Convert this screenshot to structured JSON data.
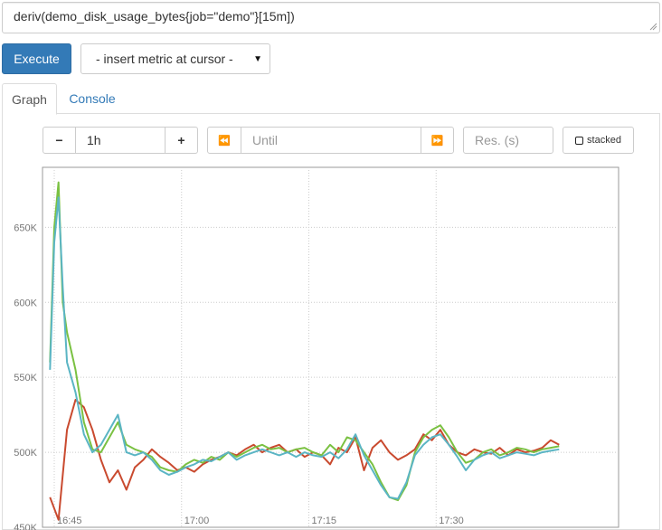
{
  "expression": {
    "value": "deriv(demo_disk_usage_bytes{job=\"demo\"}[15m])"
  },
  "toolbar": {
    "execute_label": "Execute",
    "metric_select_label": "- insert metric at cursor -"
  },
  "tabs": [
    {
      "label": "Graph",
      "active": true
    },
    {
      "label": "Console",
      "active": false
    }
  ],
  "controls": {
    "range_minus": "−",
    "range_value": "1h",
    "range_plus": "+",
    "back_icon": "⏪",
    "until_placeholder": "Until",
    "forward_icon": "⏩",
    "resolution_placeholder": "Res. (s)",
    "stacked_label": "stacked"
  },
  "chart_data": {
    "type": "line",
    "x_ticks": [
      "16:45",
      "17:00",
      "17:15",
      "17:30"
    ],
    "y_ticks": [
      "450K",
      "500K",
      "550K",
      "600K",
      "650K"
    ],
    "xlim": [
      0,
      60
    ],
    "ylim": [
      450000,
      690000
    ],
    "grid": true,
    "series": [
      {
        "color": "#c94a2f",
        "points": [
          [
            0,
            470000
          ],
          [
            1,
            455000
          ],
          [
            2,
            515000
          ],
          [
            3,
            535000
          ],
          [
            4,
            530000
          ],
          [
            5,
            515000
          ],
          [
            6,
            495000
          ],
          [
            7,
            480000
          ],
          [
            8,
            488000
          ],
          [
            9,
            475000
          ],
          [
            10,
            490000
          ],
          [
            11,
            495000
          ],
          [
            12,
            502000
          ],
          [
            13,
            497000
          ],
          [
            14,
            493000
          ],
          [
            15,
            488000
          ],
          [
            16,
            490000
          ],
          [
            17,
            487000
          ],
          [
            18,
            492000
          ],
          [
            19,
            495000
          ],
          [
            20,
            497000
          ],
          [
            21,
            500000
          ],
          [
            22,
            498000
          ],
          [
            23,
            502000
          ],
          [
            24,
            505000
          ],
          [
            25,
            500000
          ],
          [
            26,
            503000
          ],
          [
            27,
            505000
          ],
          [
            28,
            500000
          ],
          [
            29,
            502000
          ],
          [
            30,
            497000
          ],
          [
            31,
            500000
          ],
          [
            32,
            498000
          ],
          [
            33,
            492000
          ],
          [
            34,
            503000
          ],
          [
            35,
            500000
          ],
          [
            36,
            510000
          ],
          [
            37,
            488000
          ],
          [
            38,
            503000
          ],
          [
            39,
            508000
          ],
          [
            40,
            500000
          ],
          [
            41,
            495000
          ],
          [
            42,
            498000
          ],
          [
            43,
            502000
          ],
          [
            44,
            512000
          ],
          [
            45,
            508000
          ],
          [
            46,
            515000
          ],
          [
            47,
            505000
          ],
          [
            48,
            500000
          ],
          [
            49,
            498000
          ],
          [
            50,
            502000
          ],
          [
            51,
            500000
          ],
          [
            52,
            499000
          ],
          [
            53,
            503000
          ],
          [
            54,
            498000
          ],
          [
            55,
            502000
          ],
          [
            56,
            500000
          ],
          [
            57,
            501000
          ],
          [
            58,
            503000
          ],
          [
            59,
            508000
          ],
          [
            60,
            505000
          ]
        ]
      },
      {
        "color": "#7ac142",
        "points": [
          [
            0,
            560000
          ],
          [
            0.5,
            650000
          ],
          [
            1,
            680000
          ],
          [
            1.5,
            600000
          ],
          [
            2,
            580000
          ],
          [
            3,
            555000
          ],
          [
            4,
            520000
          ],
          [
            5,
            502000
          ],
          [
            6,
            500000
          ],
          [
            7,
            510000
          ],
          [
            8,
            520000
          ],
          [
            9,
            505000
          ],
          [
            10,
            502000
          ],
          [
            11,
            500000
          ],
          [
            12,
            497000
          ],
          [
            13,
            490000
          ],
          [
            14,
            488000
          ],
          [
            15,
            487000
          ],
          [
            16,
            492000
          ],
          [
            17,
            495000
          ],
          [
            18,
            493000
          ],
          [
            19,
            497000
          ],
          [
            20,
            495000
          ],
          [
            21,
            500000
          ],
          [
            22,
            497000
          ],
          [
            23,
            500000
          ],
          [
            24,
            503000
          ],
          [
            25,
            505000
          ],
          [
            26,
            502000
          ],
          [
            27,
            503000
          ],
          [
            28,
            500000
          ],
          [
            29,
            502000
          ],
          [
            30,
            503000
          ],
          [
            31,
            500000
          ],
          [
            32,
            498000
          ],
          [
            33,
            505000
          ],
          [
            34,
            500000
          ],
          [
            35,
            510000
          ],
          [
            36,
            508000
          ],
          [
            37,
            500000
          ],
          [
            38,
            492000
          ],
          [
            39,
            480000
          ],
          [
            40,
            470000
          ],
          [
            41,
            468000
          ],
          [
            42,
            478000
          ],
          [
            43,
            500000
          ],
          [
            44,
            510000
          ],
          [
            45,
            515000
          ],
          [
            46,
            518000
          ],
          [
            47,
            510000
          ],
          [
            48,
            500000
          ],
          [
            49,
            493000
          ],
          [
            50,
            495000
          ],
          [
            51,
            500000
          ],
          [
            52,
            502000
          ],
          [
            53,
            498000
          ],
          [
            54,
            500000
          ],
          [
            55,
            503000
          ],
          [
            56,
            502000
          ],
          [
            57,
            500000
          ],
          [
            58,
            502000
          ],
          [
            59,
            503000
          ],
          [
            60,
            504000
          ]
        ]
      },
      {
        "color": "#5bb5c4",
        "points": [
          [
            0,
            555000
          ],
          [
            0.5,
            640000
          ],
          [
            1,
            670000
          ],
          [
            1.5,
            610000
          ],
          [
            2,
            560000
          ],
          [
            3,
            540000
          ],
          [
            4,
            512000
          ],
          [
            5,
            500000
          ],
          [
            6,
            505000
          ],
          [
            7,
            515000
          ],
          [
            8,
            525000
          ],
          [
            9,
            500000
          ],
          [
            10,
            498000
          ],
          [
            11,
            500000
          ],
          [
            12,
            495000
          ],
          [
            13,
            488000
          ],
          [
            14,
            485000
          ],
          [
            15,
            487000
          ],
          [
            16,
            490000
          ],
          [
            17,
            492000
          ],
          [
            18,
            495000
          ],
          [
            19,
            494000
          ],
          [
            20,
            497000
          ],
          [
            21,
            500000
          ],
          [
            22,
            495000
          ],
          [
            23,
            498000
          ],
          [
            24,
            500000
          ],
          [
            25,
            502000
          ],
          [
            26,
            500000
          ],
          [
            27,
            498000
          ],
          [
            28,
            500000
          ],
          [
            29,
            497000
          ],
          [
            30,
            500000
          ],
          [
            31,
            498000
          ],
          [
            32,
            497000
          ],
          [
            33,
            500000
          ],
          [
            34,
            496000
          ],
          [
            35,
            502000
          ],
          [
            36,
            512000
          ],
          [
            37,
            498000
          ],
          [
            38,
            488000
          ],
          [
            39,
            478000
          ],
          [
            40,
            470000
          ],
          [
            41,
            469000
          ],
          [
            42,
            480000
          ],
          [
            43,
            498000
          ],
          [
            44,
            505000
          ],
          [
            45,
            510000
          ],
          [
            46,
            512000
          ],
          [
            47,
            505000
          ],
          [
            48,
            497000
          ],
          [
            49,
            488000
          ],
          [
            50,
            495000
          ],
          [
            51,
            498000
          ],
          [
            52,
            500000
          ],
          [
            53,
            496000
          ],
          [
            54,
            498000
          ],
          [
            55,
            500000
          ],
          [
            56,
            499000
          ],
          [
            57,
            498000
          ],
          [
            58,
            500000
          ],
          [
            59,
            501000
          ],
          [
            60,
            502000
          ]
        ]
      }
    ]
  }
}
